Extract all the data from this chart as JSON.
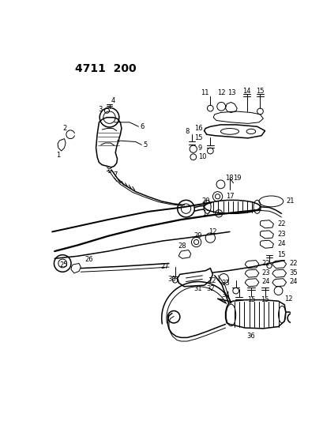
{
  "title": "4711  200",
  "bg_color": "#ffffff",
  "line_color": "#000000",
  "text_color": "#000000",
  "fig_width": 4.1,
  "fig_height": 5.33,
  "dpi": 100
}
